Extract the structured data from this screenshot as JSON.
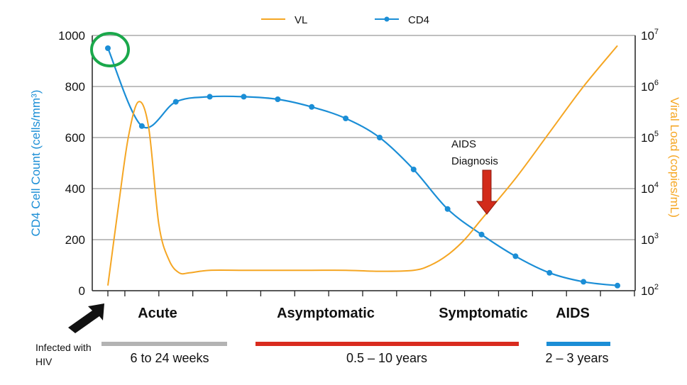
{
  "chart_data": {
    "type": "line",
    "legend": [
      {
        "name": "VL",
        "color": "#f5a623"
      },
      {
        "name": "CD4",
        "color": "#1b8ed6"
      }
    ],
    "y_left": {
      "label": "CD4 Cell Count (cells/mm³)",
      "ticks": [
        0,
        200,
        400,
        600,
        800,
        1000
      ],
      "range": [
        0,
        1000
      ]
    },
    "y_right": {
      "label": "Viral Load (copies/mL)",
      "scale": "log",
      "range_exp": [
        2,
        7
      ],
      "ticks": [
        {
          "base": "10",
          "exp": "2"
        },
        {
          "base": "10",
          "exp": "3"
        },
        {
          "base": "10",
          "exp": "4"
        },
        {
          "base": "10",
          "exp": "5"
        },
        {
          "base": "10",
          "exp": "6"
        },
        {
          "base": "10",
          "exp": "7"
        }
      ]
    },
    "x_range": [
      0,
      16
    ],
    "x_ticks": [
      0,
      0.5,
      1.5,
      2.5,
      3.5,
      4.5,
      5.5,
      6.5,
      7.5,
      8.5,
      9.5,
      10.5,
      11.5,
      12.5,
      13.5,
      14.5,
      15.5
    ],
    "series": [
      {
        "name": "CD4",
        "color": "#1b8ed6",
        "markers": true,
        "x": [
          0,
          1,
          2,
          3,
          4,
          5,
          6,
          7,
          8,
          9,
          10,
          11,
          12,
          13,
          14,
          15
        ],
        "y": [
          950,
          645,
          740,
          760,
          760,
          750,
          720,
          675,
          600,
          475,
          320,
          220,
          135,
          70,
          35,
          20
        ]
      },
      {
        "name": "VL",
        "color": "#f5a623",
        "markers": false,
        "x": [
          0,
          0.3,
          0.6,
          0.9,
          1.2,
          1.5,
          1.8,
          2.1,
          2.4,
          3,
          4,
          5,
          6,
          7,
          8,
          9,
          9.5,
          10,
          10.5,
          11,
          12,
          13,
          14,
          15
        ],
        "y": [
          2.1,
          3.6,
          5.0,
          5.7,
          5.2,
          3.3,
          2.6,
          2.35,
          2.35,
          2.4,
          2.4,
          2.4,
          2.4,
          2.4,
          2.38,
          2.4,
          2.5,
          2.7,
          3.0,
          3.4,
          4.2,
          5.1,
          6.0,
          6.8
        ]
      }
    ],
    "highlight_circle": {
      "series": "CD4",
      "point_index": 0,
      "color": "#1aa84b"
    },
    "annotations": [
      {
        "text_lines": [
          "AIDS",
          "Diagnosis"
        ],
        "arrow_color": "#d22b1a",
        "x": 10.1
      }
    ],
    "phases": [
      {
        "label": "Acute",
        "duration": "6 to 24 weeks",
        "bar_color": "#b3b3b3"
      },
      {
        "label": "Asymptomatic",
        "duration": "0.5 – 10 years",
        "bar_color": "#d92b1e"
      },
      {
        "label": "Symptomatic",
        "duration": "",
        "bar_color": ""
      },
      {
        "label": "AIDS",
        "duration": "2 – 3 years",
        "bar_color": "#1b8ed6"
      }
    ],
    "infection_note": [
      "Infected with",
      "HIV"
    ]
  }
}
